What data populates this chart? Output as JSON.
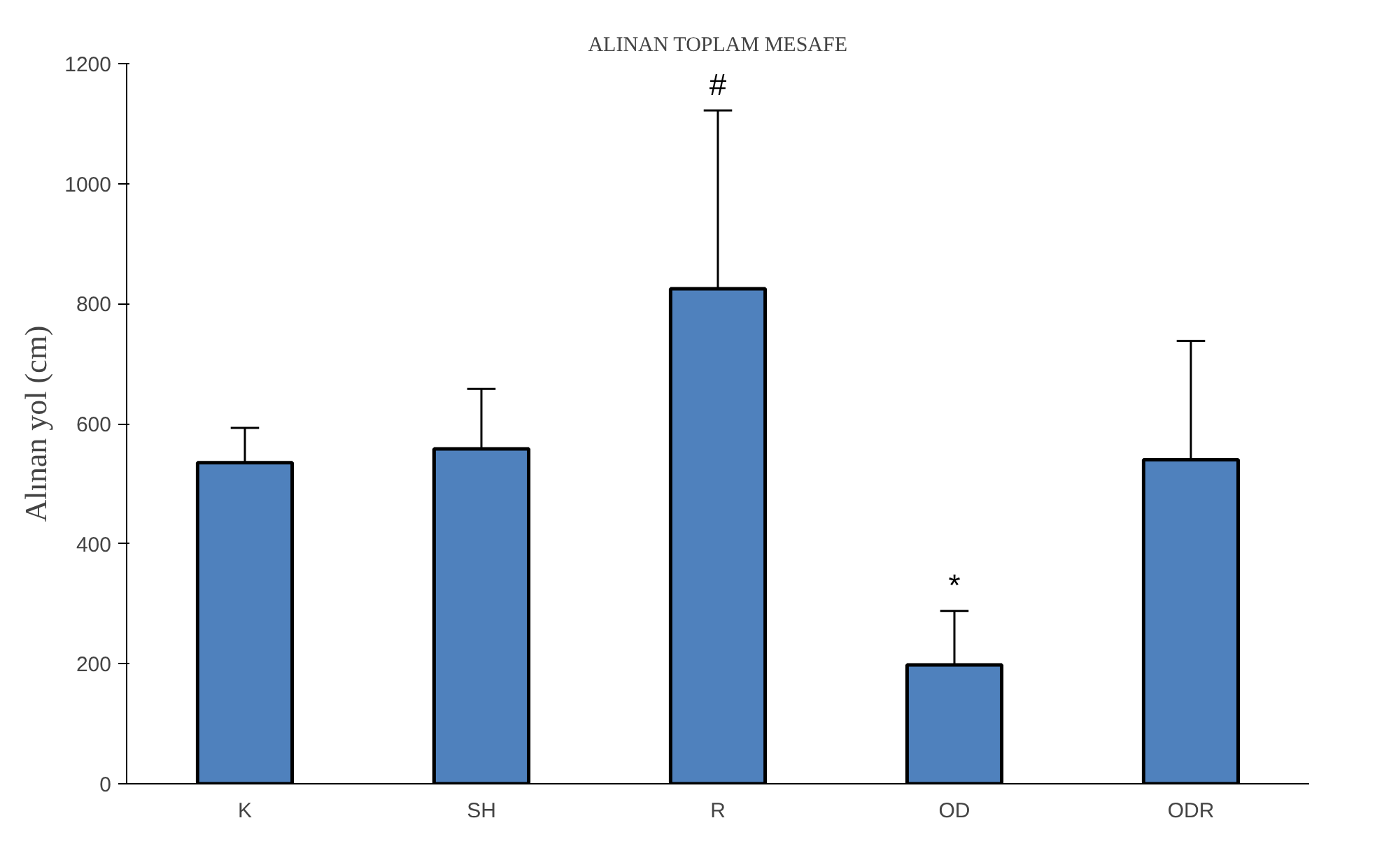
{
  "chart_data": {
    "type": "bar",
    "title": "ALINAN TOPLAM MESAFE",
    "ylabel": "Alınan yol (cm)",
    "categories": [
      "K",
      "SH",
      "R",
      "OD",
      "ODR"
    ],
    "values": [
      535,
      558,
      825,
      198,
      540
    ],
    "errors": [
      [
        535,
        593
      ],
      [
        558,
        658
      ],
      [
        825,
        1122
      ],
      [
        198,
        288
      ],
      [
        540,
        738
      ]
    ],
    "color": "#4f81bd",
    "ylim": [
      0,
      1200
    ],
    "yticks": [
      0,
      200,
      400,
      600,
      800,
      1000,
      1200
    ],
    "grid": false,
    "annotations": [
      "#",
      "*"
    ]
  }
}
